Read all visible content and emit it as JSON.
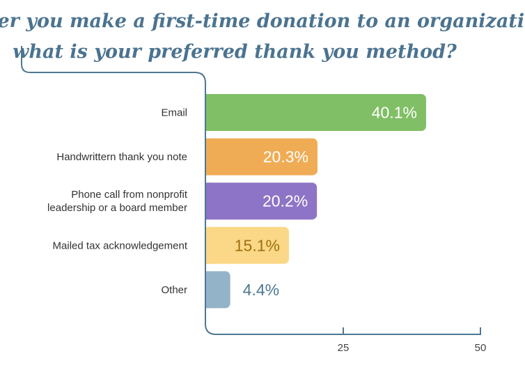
{
  "title_lines": [
    "After you make a first-time donation to an organization,",
    "what is your preferred thank you method?"
  ],
  "chart_data": {
    "type": "bar",
    "orientation": "horizontal",
    "title": "After you make a first-time donation to an organization, what is your preferred thank you method?",
    "categories": [
      [
        "Email"
      ],
      [
        "Handwrittern thank you note"
      ],
      [
        "Phone call from nonprofit",
        "leadership or a board member"
      ],
      [
        "Mailed tax acknowledgement"
      ],
      [
        "Other"
      ]
    ],
    "values": [
      40.1,
      20.3,
      20.2,
      15.1,
      4.4
    ],
    "value_labels": [
      "40.1%",
      "20.3%",
      "20.2%",
      "15.1%",
      "4.4%"
    ],
    "bar_colors": [
      "#80bf66",
      "#f0ac55",
      "#8e74c6",
      "#fbd887",
      "#93b3c9"
    ],
    "label_colors": [
      "#ffffff",
      "#ffffff",
      "#ffffff",
      "#a06f0d",
      "#4d7790"
    ],
    "label_position": [
      "inside",
      "inside",
      "inside",
      "inside",
      "outside"
    ],
    "xlim": [
      0,
      50
    ],
    "xticks": [
      25,
      50
    ],
    "xtick_labels": [
      "25",
      "50"
    ],
    "grid": false,
    "axis_color": "#4d7790"
  }
}
